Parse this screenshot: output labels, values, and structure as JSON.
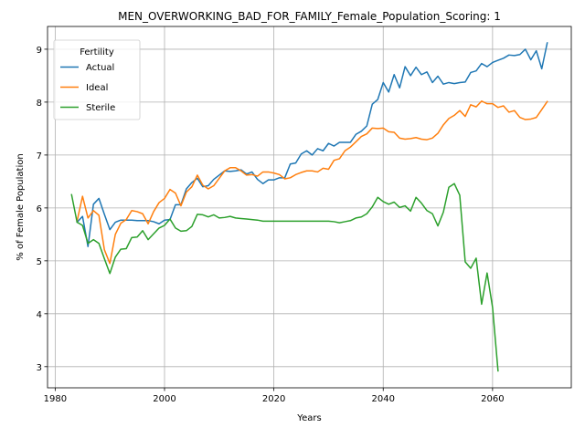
{
  "chart_data": {
    "type": "line",
    "title": "MEN_OVERWORKING_BAD_FOR_FAMILY_Female_Population_Scoring: 1",
    "xlabel": "Years",
    "ylabel": "% of Female Population",
    "xlim": [
      1978.6,
      2074.4
    ],
    "ylim": [
      2.6,
      9.43
    ],
    "xticks": [
      1980,
      2000,
      2020,
      2040,
      2060
    ],
    "yticks": [
      3,
      4,
      5,
      6,
      7,
      8,
      9
    ],
    "grid": true,
    "legend": {
      "title": "Fertility",
      "placement": "upper-left"
    },
    "series": [
      {
        "name": "Actual",
        "color": "#1f77b4",
        "x": [
          1984,
          1985,
          1986,
          1987,
          1988,
          1989,
          1990,
          1991,
          1992,
          1993,
          1994,
          1995,
          1996,
          1997,
          1998,
          1999,
          2000,
          2001,
          2002,
          2003,
          2004,
          2005,
          2006,
          2007,
          2008,
          2009,
          2010,
          2011,
          2012,
          2013,
          2014,
          2015,
          2016,
          2017,
          2018,
          2019,
          2020,
          2021,
          2022,
          2023,
          2024,
          2025,
          2026,
          2027,
          2028,
          2029,
          2030,
          2031,
          2032,
          2033,
          2034,
          2035,
          2036,
          2037,
          2038,
          2039,
          2040,
          2041,
          2042,
          2043,
          2044,
          2045,
          2046,
          2047,
          2048,
          2049,
          2050,
          2051,
          2052,
          2053,
          2054,
          2055,
          2056,
          2057,
          2058,
          2059,
          2060,
          2061,
          2062,
          2063,
          2064,
          2065,
          2066,
          2067,
          2068,
          2069,
          2070
        ],
        "y": [
          5.73,
          5.84,
          5.27,
          6.07,
          6.18,
          5.88,
          5.59,
          5.73,
          5.77,
          5.77,
          5.77,
          5.76,
          5.76,
          5.76,
          5.74,
          5.7,
          5.77,
          5.78,
          6.06,
          6.06,
          6.36,
          6.48,
          6.56,
          6.4,
          6.42,
          6.54,
          6.62,
          6.7,
          6.69,
          6.7,
          6.72,
          6.64,
          6.68,
          6.54,
          6.46,
          6.53,
          6.53,
          6.57,
          6.57,
          6.83,
          6.85,
          7.02,
          7.08,
          7.0,
          7.12,
          7.08,
          7.22,
          7.17,
          7.24,
          7.24,
          7.24,
          7.39,
          7.45,
          7.55,
          7.96,
          8.05,
          8.37,
          8.19,
          8.52,
          8.27,
          8.67,
          8.5,
          8.66,
          8.52,
          8.57,
          8.37,
          8.49,
          8.34,
          8.37,
          8.35,
          8.37,
          8.38,
          8.56,
          8.59,
          8.73,
          8.67,
          8.75,
          8.79,
          8.83,
          8.89,
          8.88,
          8.9,
          9.0,
          8.8,
          8.97,
          8.63,
          9.12
        ]
      },
      {
        "name": "Ideal",
        "color": "#ff7f0e",
        "x": [
          1984,
          1985,
          1986,
          1987,
          1988,
          1989,
          1990,
          1991,
          1992,
          1993,
          1994,
          1995,
          1996,
          1997,
          1998,
          1999,
          2000,
          2001,
          2002,
          2003,
          2004,
          2005,
          2006,
          2007,
          2008,
          2009,
          2010,
          2011,
          2012,
          2013,
          2014,
          2015,
          2016,
          2017,
          2018,
          2019,
          2020,
          2021,
          2022,
          2023,
          2024,
          2025,
          2026,
          2027,
          2028,
          2029,
          2030,
          2031,
          2032,
          2033,
          2034,
          2035,
          2036,
          2037,
          2038,
          2039,
          2040,
          2041,
          2042,
          2043,
          2044,
          2045,
          2046,
          2047,
          2048,
          2049,
          2050,
          2051,
          2052,
          2053,
          2054,
          2055,
          2056,
          2057,
          2058,
          2059,
          2060,
          2061,
          2062,
          2063,
          2064,
          2065,
          2066,
          2067,
          2068,
          2069,
          2070
        ],
        "y": [
          5.75,
          6.22,
          5.81,
          5.95,
          5.86,
          5.21,
          4.95,
          5.5,
          5.71,
          5.78,
          5.95,
          5.93,
          5.89,
          5.7,
          5.93,
          6.1,
          6.18,
          6.35,
          6.28,
          6.04,
          6.3,
          6.4,
          6.62,
          6.43,
          6.36,
          6.42,
          6.56,
          6.7,
          6.76,
          6.76,
          6.7,
          6.62,
          6.63,
          6.6,
          6.68,
          6.68,
          6.66,
          6.63,
          6.55,
          6.57,
          6.63,
          6.67,
          6.7,
          6.7,
          6.68,
          6.75,
          6.73,
          6.9,
          6.93,
          7.08,
          7.15,
          7.25,
          7.35,
          7.4,
          7.51,
          7.5,
          7.51,
          7.44,
          7.43,
          7.32,
          7.3,
          7.31,
          7.33,
          7.3,
          7.29,
          7.32,
          7.41,
          7.57,
          7.69,
          7.75,
          7.84,
          7.73,
          7.95,
          7.91,
          8.02,
          7.97,
          7.97,
          7.9,
          7.93,
          7.81,
          7.84,
          7.71,
          7.67,
          7.68,
          7.71,
          7.86,
          8.01
        ]
      },
      {
        "name": "Sterile",
        "color": "#2ca02c",
        "x": [
          1983,
          1984,
          1985,
          1986,
          1987,
          1988,
          1989,
          1990,
          1991,
          1992,
          1993,
          1994,
          1995,
          1996,
          1997,
          1998,
          1999,
          2000,
          2001,
          2002,
          2003,
          2004,
          2005,
          2006,
          2007,
          2008,
          2009,
          2010,
          2011,
          2012,
          2013,
          2014,
          2015,
          2016,
          2017,
          2018,
          2019,
          2020,
          2021,
          2022,
          2023,
          2024,
          2025,
          2026,
          2027,
          2028,
          2029,
          2030,
          2031,
          2032,
          2033,
          2034,
          2035,
          2036,
          2037,
          2038,
          2039,
          2040,
          2041,
          2042,
          2043,
          2044,
          2045,
          2046,
          2047,
          2048,
          2049,
          2050,
          2051,
          2052,
          2053,
          2054,
          2055,
          2056,
          2057,
          2058,
          2059,
          2060,
          2061
        ],
        "y": [
          6.25,
          5.73,
          5.67,
          5.33,
          5.4,
          5.33,
          5.04,
          4.76,
          5.07,
          5.22,
          5.23,
          5.44,
          5.45,
          5.57,
          5.4,
          5.51,
          5.62,
          5.67,
          5.79,
          5.62,
          5.56,
          5.57,
          5.65,
          5.88,
          5.87,
          5.83,
          5.87,
          5.81,
          5.82,
          5.84,
          5.81,
          5.8,
          5.79,
          5.78,
          5.77,
          5.75,
          5.75,
          5.75,
          5.75,
          5.75,
          5.75,
          5.75,
          5.75,
          5.75,
          5.75,
          5.75,
          5.75,
          5.75,
          5.74,
          5.72,
          5.74,
          5.76,
          5.81,
          5.83,
          5.89,
          6.02,
          6.2,
          6.12,
          6.07,
          6.11,
          6.01,
          6.04,
          5.94,
          6.2,
          6.09,
          5.95,
          5.89,
          5.66,
          5.92,
          6.39,
          6.46,
          6.24,
          4.98,
          4.86,
          5.05,
          4.18,
          4.77,
          4.12,
          2.92
        ]
      }
    ]
  }
}
